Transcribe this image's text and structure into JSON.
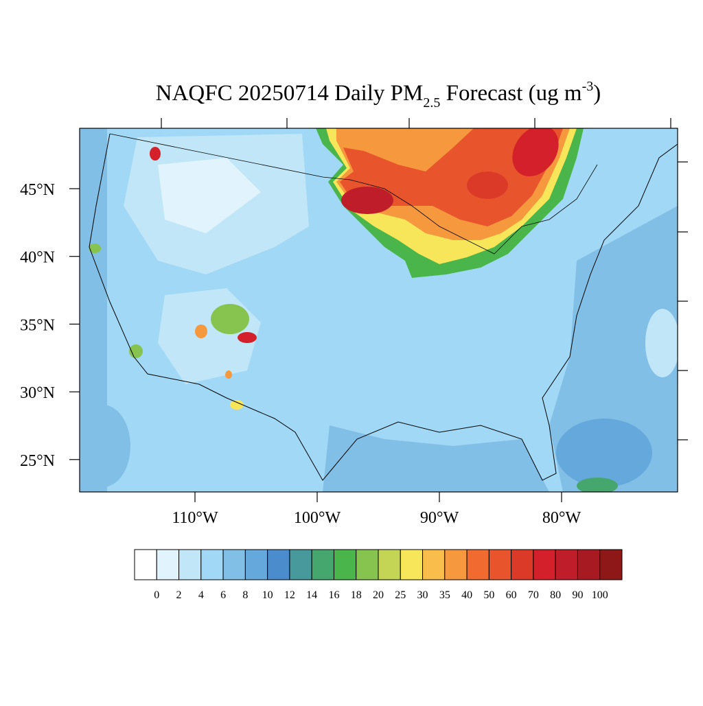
{
  "title": {
    "main": "NAQFC 20250714 Daily PM",
    "sub": "2.5",
    "mid": " Forecast (ug m",
    "sup": "-3",
    "end": ")"
  },
  "lat_ticks": [
    {
      "value": 45,
      "label": "45°N"
    },
    {
      "value": 40,
      "label": "40°N"
    },
    {
      "value": 35,
      "label": "35°N"
    },
    {
      "value": 30,
      "label": "30°N"
    },
    {
      "value": 25,
      "label": "25°N"
    }
  ],
  "lon_ticks": [
    {
      "value": -110,
      "label": "110°W"
    },
    {
      "value": -100,
      "label": "100°W"
    },
    {
      "value": -90,
      "label": "90°W"
    },
    {
      "value": -80,
      "label": "80°W"
    }
  ],
  "colorbar": {
    "levels": [
      0,
      2,
      4,
      6,
      8,
      10,
      12,
      14,
      16,
      18,
      20,
      25,
      30,
      35,
      40,
      50,
      60,
      70,
      80,
      90,
      100
    ],
    "colors": [
      "#ffffff",
      "#e1f3fc",
      "#c0e6f8",
      "#a0d8f5",
      "#82bfe6",
      "#64a8dc",
      "#4a8ccc",
      "#47999c",
      "#46a76e",
      "#4ab54a",
      "#86c44f",
      "#c4d555",
      "#f7e65a",
      "#f8bd4a",
      "#f5983e",
      "#f16b30",
      "#e8542c",
      "#dc3a28",
      "#d4202a",
      "#bf1d2a",
      "#a81a22",
      "#8e1718"
    ]
  }
}
